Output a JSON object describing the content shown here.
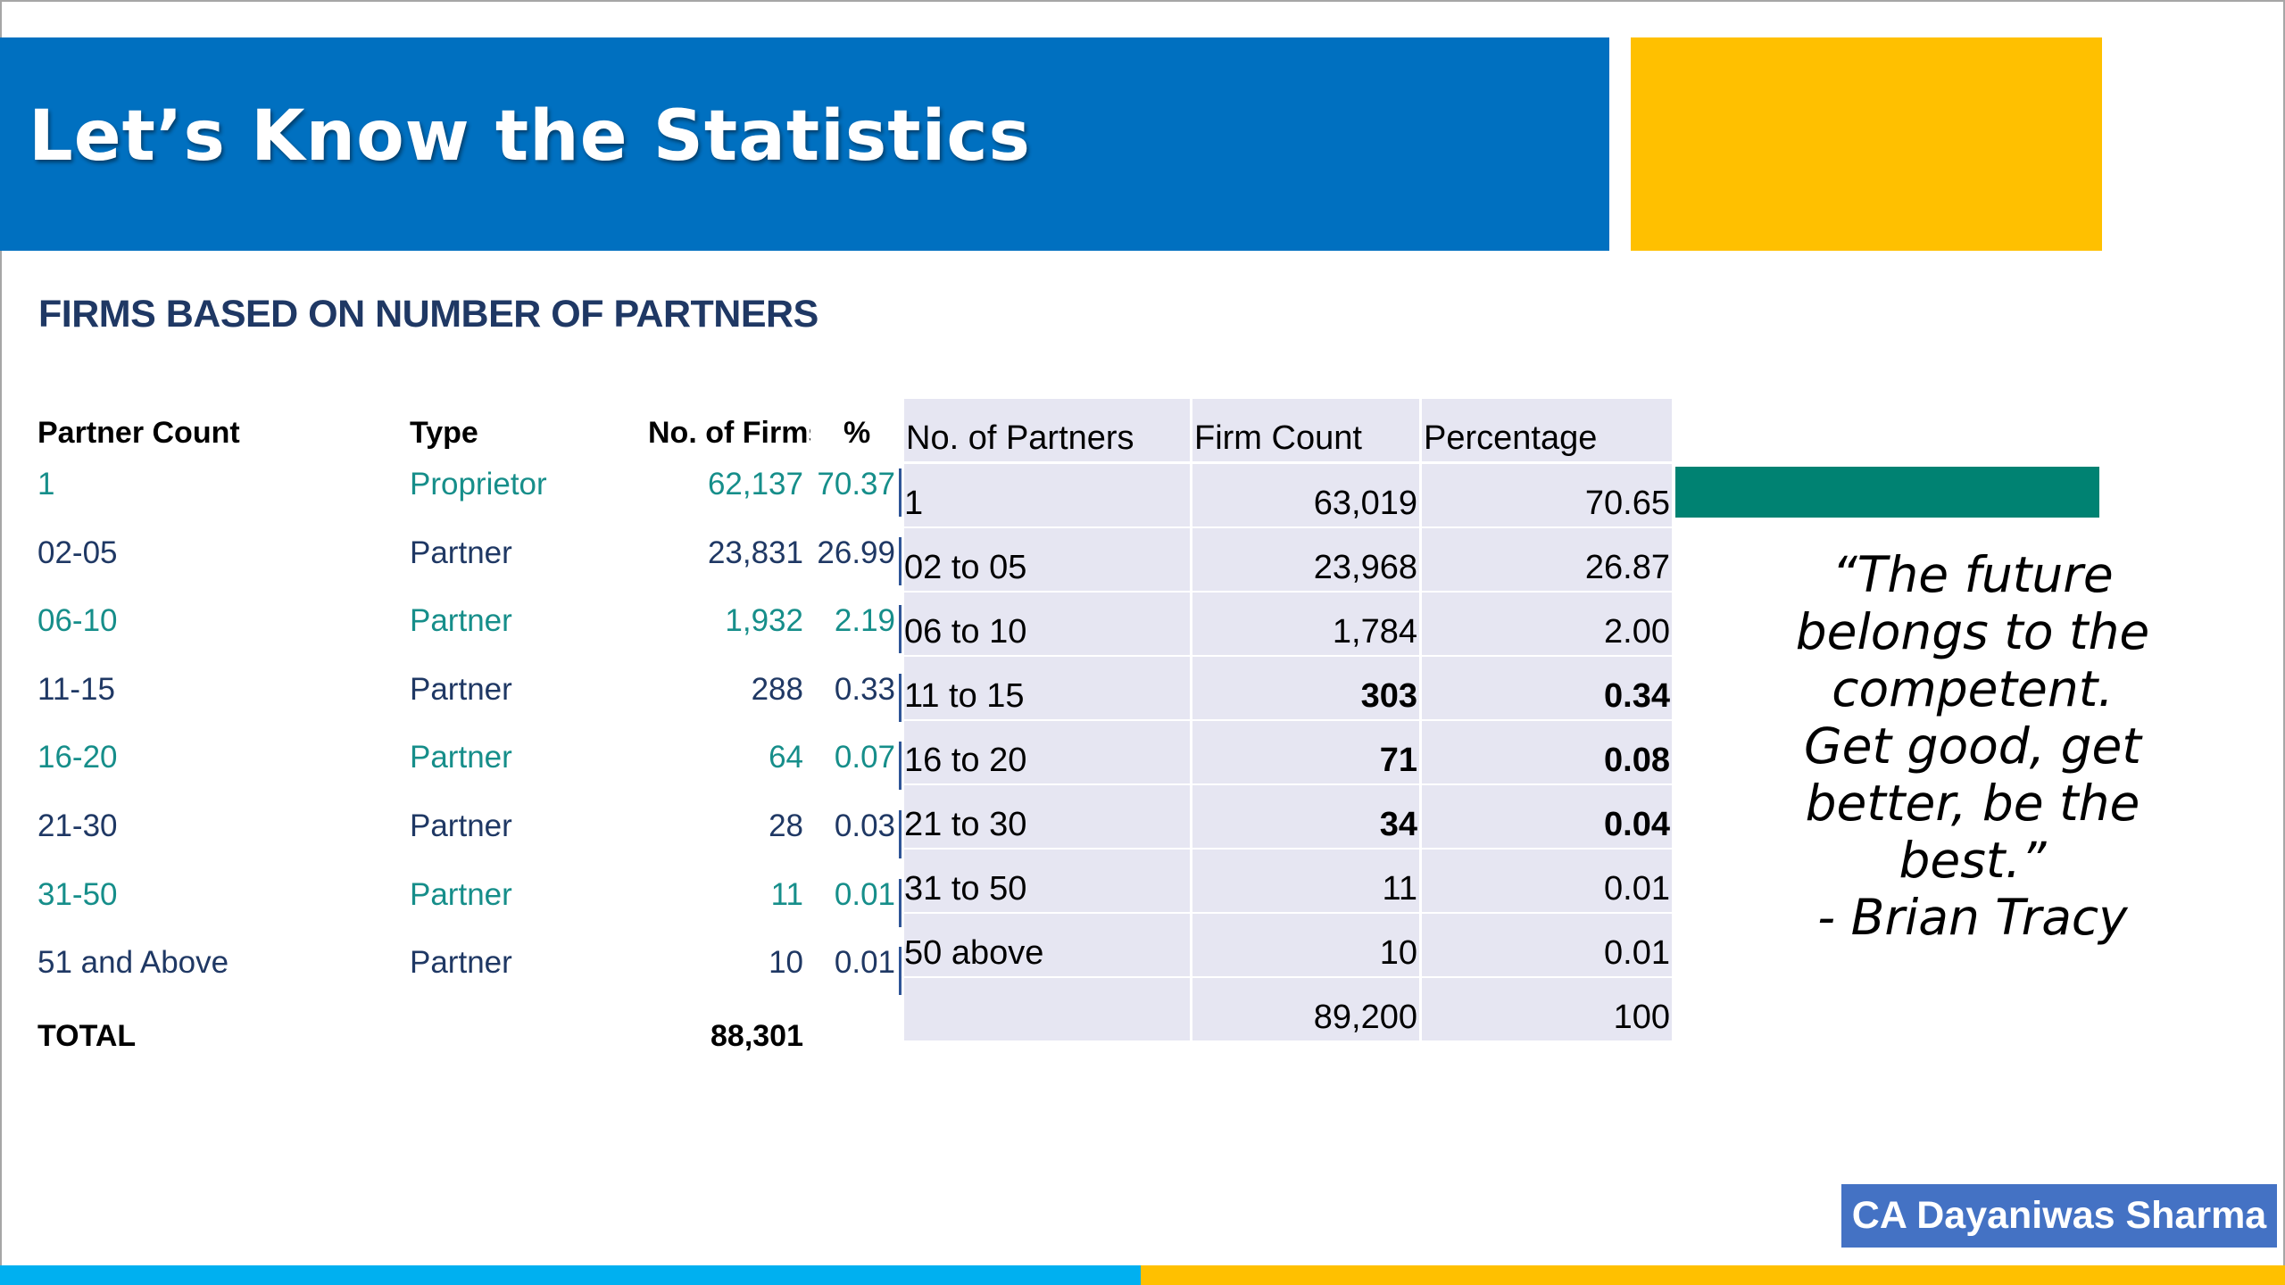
{
  "slide": {
    "title": "Let’s Know the Statistics",
    "subtitle": "FIRMS BASED ON NUMBER OF PARTNERS",
    "colors": {
      "banner_blue": "#0070c0",
      "banner_yellow": "#ffc000",
      "accent_teal": "#008272",
      "text_teal": "#168e8a",
      "text_navy": "#1f3864"
    }
  },
  "left_table": {
    "headers": {
      "partner_count": "Partner Count",
      "type": "Type",
      "firms": "No. of Firms",
      "pct": "%"
    },
    "rows": [
      {
        "count": "1",
        "type": "Proprietor",
        "firms": "62,137",
        "pct": "70.37"
      },
      {
        "count": "02-05",
        "type": "Partner",
        "firms": "23,831",
        "pct": "26.99"
      },
      {
        "count": "06-10",
        "type": "Partner",
        "firms": "1,932",
        "pct": "2.19"
      },
      {
        "count": "11-15",
        "type": "Partner",
        "firms": "288",
        "pct": "0.33"
      },
      {
        "count": "16-20",
        "type": "Partner",
        "firms": "64",
        "pct": "0.07"
      },
      {
        "count": "21-30",
        "type": "Partner",
        "firms": "28",
        "pct": "0.03"
      },
      {
        "count": "31-50",
        "type": "Partner",
        "firms": "11",
        "pct": "0.01"
      },
      {
        "count": "51 and Above",
        "type": "Partner",
        "firms": "10",
        "pct": "0.01"
      }
    ],
    "total_label": "TOTAL",
    "total_value": "88,301"
  },
  "right_table": {
    "headers": {
      "partners": "No. of Partners",
      "firm_count": "Firm Count",
      "percentage": "Percentage"
    },
    "rows": [
      {
        "partners": "1",
        "count": "63,019",
        "pct": "70.65",
        "bold": false
      },
      {
        "partners": "02 to 05",
        "count": "23,968",
        "pct": "26.87",
        "bold": false
      },
      {
        "partners": "06 to 10",
        "count": "1,784",
        "pct": "2.00",
        "bold": false
      },
      {
        "partners": "11 to 15",
        "count": "303",
        "pct": "0.34",
        "bold": true
      },
      {
        "partners": "16 to 20",
        "count": "71",
        "pct": "0.08",
        "bold": true
      },
      {
        "partners": "21 to 30",
        "count": "34",
        "pct": "0.04",
        "bold": true
      },
      {
        "partners": "31 to 50",
        "count": "11",
        "pct": "0.01",
        "bold": false
      },
      {
        "partners": "50 above",
        "count": "10",
        "pct": "0.01",
        "bold": false
      },
      {
        "partners": "",
        "count": "89,200",
        "pct": "100",
        "bold": false
      }
    ]
  },
  "quote": {
    "lines": [
      "“The future",
      "belongs to the",
      "competent.",
      "Get good, get",
      "better, be the",
      "best.”"
    ],
    "author": "- Brian Tracy"
  },
  "footer": {
    "author_box": "CA Dayaniwas Sharma"
  }
}
